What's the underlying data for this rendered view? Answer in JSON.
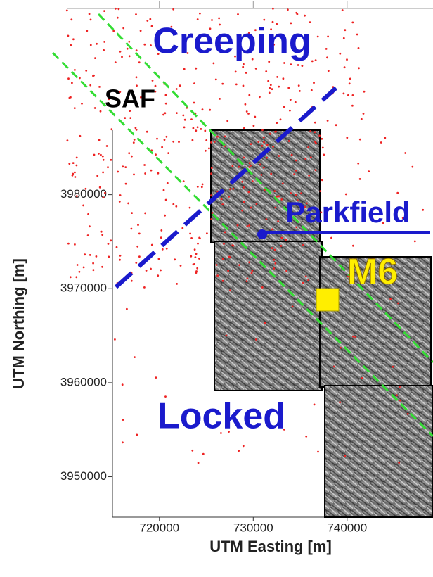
{
  "chart_data": {
    "type": "map",
    "xlabel": "UTM Easting [m]",
    "ylabel": "UTM Northing [m]",
    "xlim": [
      715000,
      749000
    ],
    "ylim": [
      3945700,
      4000700
    ],
    "xticks": [
      720000,
      730000,
      740000
    ],
    "yticks": [
      3950000,
      3960000,
      3970000,
      3980000
    ],
    "annotations": {
      "creeping": "Creeping",
      "saf": "SAF",
      "parkfield": "Parkfield",
      "m6": "M6",
      "locked": "Locked"
    }
  }
}
